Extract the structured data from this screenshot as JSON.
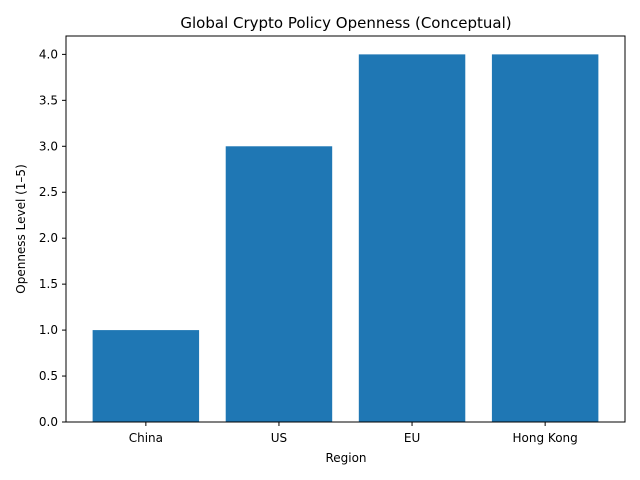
{
  "chart_data": {
    "type": "bar",
    "title": "Global Crypto Policy Openness (Conceptual)",
    "xlabel": "Region",
    "ylabel": "Openness Level (1–5)",
    "categories": [
      "China",
      "US",
      "EU",
      "Hong Kong"
    ],
    "values": [
      1,
      3,
      4,
      4
    ],
    "ylim": [
      0,
      4.2
    ],
    "yticks": [
      "0.0",
      "0.5",
      "1.0",
      "1.5",
      "2.0",
      "2.5",
      "3.0",
      "3.5",
      "4.0"
    ],
    "bar_color": "#1f77b4",
    "grid": false
  }
}
